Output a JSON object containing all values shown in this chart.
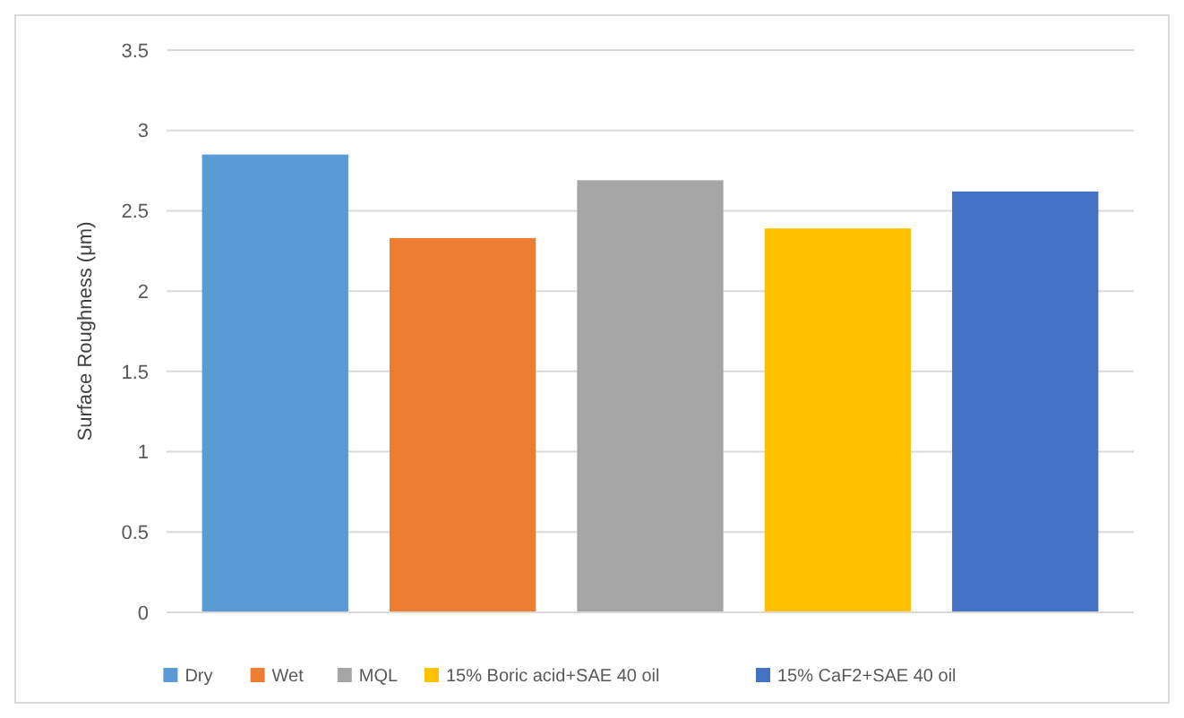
{
  "chart_data": {
    "type": "bar",
    "ylabel": "Surface Roughness (μm)",
    "categories": [
      null
    ],
    "series": [
      {
        "name": "Dry",
        "color": "#5b9bd5",
        "values": [
          2.85
        ]
      },
      {
        "name": "Wet",
        "color": "#ed7d31",
        "values": [
          2.33
        ]
      },
      {
        "name": "MQL",
        "color": "#a5a5a5",
        "values": [
          2.69
        ]
      },
      {
        "name": "15% Boric acid+SAE 40 oil",
        "color": "#ffc000",
        "values": [
          2.39
        ]
      },
      {
        "name": "15% CaF2+SAE 40 oil",
        "color": "#4472c4",
        "values": [
          2.62
        ]
      }
    ],
    "ylim": [
      0,
      3.5
    ],
    "yticks": [
      0,
      0.5,
      1,
      1.5,
      2,
      2.5,
      3,
      3.5
    ],
    "grid": "y",
    "legend": "bottom",
    "tick_labels": "y"
  }
}
